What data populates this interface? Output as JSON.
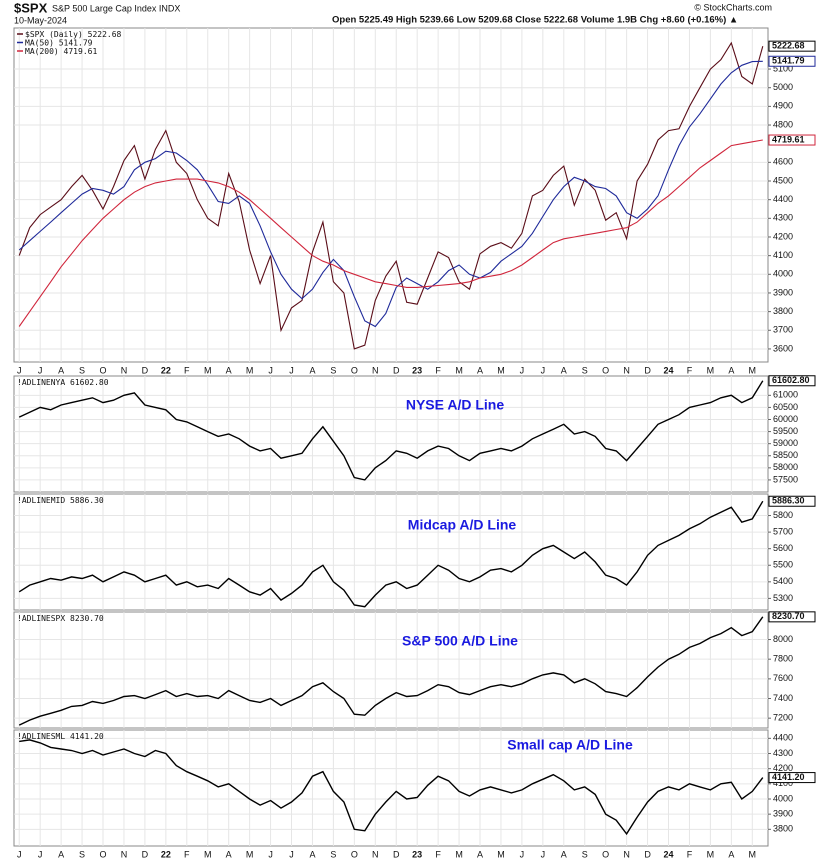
{
  "chart_data": [
    {
      "type": "line",
      "title": "$SPX",
      "subtitle": "S&P 500 Large Cap Index INDX",
      "date": "10-May-2024",
      "quote": "Open 5225.49 High 5239.66 Low 5209.68 Close 5222.68 Volume 1.9B Chg +8.60 (+0.16%) ▲",
      "credit": "© StockCharts.com",
      "categories": [
        "J",
        null,
        "J",
        null,
        "A",
        null,
        "S",
        null,
        "O",
        null,
        "N",
        null,
        "D",
        null,
        "22",
        null,
        "F",
        null,
        "M",
        null,
        "A",
        null,
        "M",
        null,
        "J",
        null,
        "J",
        null,
        "A",
        null,
        "S",
        null,
        "O",
        null,
        "N",
        null,
        "D",
        null,
        "23",
        null,
        "F",
        null,
        "M",
        null,
        "A",
        null,
        "M",
        null,
        "J",
        null,
        "J",
        null,
        "A",
        null,
        "S",
        null,
        "O",
        null,
        "N",
        null,
        "D",
        null,
        "24",
        null,
        "F",
        null,
        "M",
        null,
        "A",
        null,
        "M",
        null
      ],
      "ylim": [
        3530,
        5320
      ],
      "yticks": [
        3600,
        3700,
        3800,
        3900,
        4000,
        4100,
        4200,
        4300,
        4400,
        4500,
        4600,
        4800,
        4900,
        5000,
        5100
      ],
      "grid": true,
      "series": [
        {
          "name": "$SPX (Daily)",
          "color": "#5a0d18",
          "last_label": "5222.68",
          "values": [
            4100,
            4250,
            4320,
            4360,
            4400,
            4470,
            4530,
            4450,
            4350,
            4470,
            4610,
            4690,
            4510,
            4670,
            4770,
            4600,
            4540,
            4400,
            4300,
            4260,
            4540,
            4390,
            4130,
            3950,
            4100,
            3700,
            3820,
            3860,
            4120,
            4280,
            3960,
            3900,
            3600,
            3620,
            3860,
            3990,
            4070,
            3850,
            3840,
            3980,
            4120,
            4090,
            3960,
            3920,
            4110,
            4150,
            4170,
            4140,
            4220,
            4420,
            4450,
            4530,
            4580,
            4370,
            4510,
            4450,
            4290,
            4330,
            4190,
            4500,
            4590,
            4720,
            4770,
            4780,
            4900,
            5000,
            5100,
            5150,
            5240,
            5060,
            5020,
            5222.68
          ]
        },
        {
          "name": "MA(50)",
          "color": "#1f2a9a",
          "last_label": "5141.79",
          "values": [
            4130,
            4180,
            4230,
            4280,
            4330,
            4380,
            4430,
            4460,
            4450,
            4430,
            4470,
            4560,
            4600,
            4620,
            4660,
            4650,
            4610,
            4560,
            4480,
            4390,
            4380,
            4420,
            4380,
            4260,
            4120,
            4000,
            3920,
            3870,
            3920,
            4010,
            4080,
            4020,
            3880,
            3750,
            3720,
            3790,
            3930,
            3980,
            3950,
            3920,
            3960,
            4020,
            4050,
            4000,
            3980,
            4010,
            4070,
            4110,
            4150,
            4220,
            4310,
            4400,
            4470,
            4520,
            4500,
            4470,
            4460,
            4420,
            4330,
            4300,
            4350,
            4420,
            4560,
            4690,
            4790,
            4860,
            4940,
            5020,
            5080,
            5120,
            5140,
            5141.79
          ]
        },
        {
          "name": "MA(200)",
          "color": "#d0263c",
          "last_label": "4719.61",
          "values": [
            3720,
            3800,
            3880,
            3960,
            4040,
            4110,
            4180,
            4240,
            4300,
            4350,
            4400,
            4440,
            4470,
            4490,
            4500,
            4510,
            4510,
            4510,
            4500,
            4490,
            4470,
            4440,
            4400,
            4350,
            4300,
            4250,
            4200,
            4150,
            4100,
            4070,
            4050,
            4020,
            4000,
            3980,
            3960,
            3950,
            3940,
            3930,
            3930,
            3935,
            3940,
            3945,
            3950,
            3960,
            3980,
            3990,
            4000,
            4020,
            4050,
            4090,
            4130,
            4170,
            4190,
            4200,
            4210,
            4220,
            4230,
            4240,
            4250,
            4280,
            4330,
            4380,
            4420,
            4470,
            4520,
            4570,
            4610,
            4650,
            4690,
            4700,
            4710,
            4719.61
          ]
        }
      ]
    },
    {
      "type": "line",
      "name": "!ADLINENYA",
      "last_label": "61602.80",
      "annotation": "NYSE A/D Line",
      "color": "#000000",
      "ylim": [
        57000,
        61800
      ],
      "yticks": [
        57500,
        58000,
        58500,
        59000,
        59500,
        60000,
        60500,
        61000
      ],
      "grid": true,
      "values": [
        60100,
        60300,
        60500,
        60400,
        60600,
        60700,
        60800,
        60900,
        60700,
        60800,
        61000,
        61100,
        60600,
        60500,
        60400,
        60000,
        59900,
        59700,
        59500,
        59300,
        59400,
        59200,
        58900,
        58700,
        58800,
        58400,
        58500,
        58600,
        59200,
        59700,
        59100,
        58500,
        57600,
        57500,
        58000,
        58300,
        58700,
        58600,
        58400,
        58700,
        58900,
        58800,
        58500,
        58300,
        58600,
        58700,
        58800,
        58700,
        58900,
        59200,
        59400,
        59600,
        59800,
        59400,
        59500,
        59300,
        58800,
        58700,
        58300,
        58800,
        59300,
        59800,
        60000,
        60200,
        60500,
        60600,
        60700,
        60900,
        61000,
        60700,
        60900,
        61602.8
      ]
    },
    {
      "type": "line",
      "name": "!ADLINEMID",
      "last_label": "5886.30",
      "annotation": "Midcap A/D Line",
      "color": "#000000",
      "ylim": [
        5230,
        5930
      ],
      "yticks": [
        5300,
        5400,
        5500,
        5600,
        5700,
        5800
      ],
      "grid": true,
      "values": [
        5340,
        5380,
        5400,
        5420,
        5410,
        5430,
        5420,
        5440,
        5400,
        5430,
        5460,
        5440,
        5400,
        5420,
        5440,
        5380,
        5400,
        5370,
        5380,
        5360,
        5420,
        5380,
        5340,
        5320,
        5360,
        5290,
        5330,
        5380,
        5460,
        5500,
        5400,
        5350,
        5260,
        5250,
        5320,
        5380,
        5400,
        5360,
        5380,
        5440,
        5500,
        5470,
        5420,
        5400,
        5430,
        5470,
        5480,
        5460,
        5500,
        5560,
        5600,
        5620,
        5580,
        5540,
        5580,
        5520,
        5440,
        5420,
        5380,
        5460,
        5560,
        5620,
        5650,
        5680,
        5720,
        5750,
        5790,
        5820,
        5850,
        5760,
        5780,
        5886.3
      ]
    },
    {
      "type": "line",
      "name": "!ADLINESPX",
      "last_label": "8230.70",
      "annotation": "S&P 500 A/D Line",
      "color": "#000000",
      "ylim": [
        7100,
        8280
      ],
      "yticks": [
        7200,
        7400,
        7600,
        7800,
        8000
      ],
      "grid": true,
      "values": [
        7130,
        7180,
        7220,
        7250,
        7280,
        7320,
        7330,
        7370,
        7350,
        7380,
        7420,
        7430,
        7400,
        7440,
        7480,
        7420,
        7450,
        7420,
        7430,
        7400,
        7480,
        7430,
        7380,
        7360,
        7400,
        7330,
        7380,
        7430,
        7520,
        7560,
        7470,
        7400,
        7240,
        7230,
        7330,
        7400,
        7460,
        7420,
        7430,
        7480,
        7540,
        7520,
        7460,
        7440,
        7480,
        7520,
        7540,
        7520,
        7550,
        7600,
        7640,
        7660,
        7640,
        7560,
        7600,
        7550,
        7470,
        7450,
        7420,
        7510,
        7620,
        7720,
        7800,
        7850,
        7920,
        7960,
        8020,
        8060,
        8120,
        8040,
        8080,
        8230.7
      ]
    },
    {
      "type": "line",
      "name": "!ADLINESML",
      "last_label": "4141.20",
      "annotation": "Small cap A/D Line",
      "color": "#000000",
      "categories": [
        "J",
        null,
        "J",
        null,
        "A",
        null,
        "S",
        null,
        "O",
        null,
        "N",
        null,
        "D",
        null,
        "22",
        null,
        "F",
        null,
        "M",
        null,
        "A",
        null,
        "M",
        null,
        "J",
        null,
        "J",
        null,
        "A",
        null,
        "S",
        null,
        "O",
        null,
        "N",
        null,
        "D",
        null,
        "23",
        null,
        "F",
        null,
        "M",
        null,
        "A",
        null,
        "M",
        null,
        "J",
        null,
        "J",
        null,
        "A",
        null,
        "S",
        null,
        "O",
        null,
        "N",
        null,
        "D",
        null,
        "24",
        null,
        "F",
        null,
        "M",
        null,
        "A",
        null,
        "M",
        null
      ],
      "ylim": [
        3690,
        4455
      ],
      "yticks": [
        3800,
        3900,
        4000,
        4100,
        4200,
        4300,
        4400
      ],
      "grid": true,
      "values": [
        4380,
        4390,
        4370,
        4340,
        4330,
        4320,
        4300,
        4320,
        4290,
        4310,
        4330,
        4300,
        4280,
        4320,
        4300,
        4220,
        4180,
        4150,
        4120,
        4080,
        4100,
        4050,
        4000,
        3960,
        3990,
        3940,
        3980,
        4040,
        4150,
        4180,
        4050,
        3980,
        3800,
        3790,
        3900,
        3980,
        4050,
        4000,
        4010,
        4090,
        4150,
        4120,
        4050,
        4020,
        4060,
        4080,
        4060,
        4040,
        4060,
        4100,
        4130,
        4160,
        4120,
        4060,
        4080,
        4030,
        3900,
        3860,
        3770,
        3880,
        3980,
        4050,
        4080,
        4060,
        4100,
        4080,
        4060,
        4100,
        4110,
        4000,
        4050,
        4141.2
      ]
    }
  ]
}
